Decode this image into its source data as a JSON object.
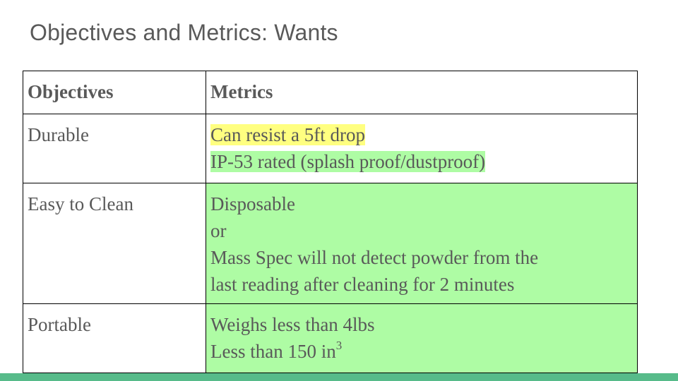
{
  "slide": {
    "title": "Objectives and Metrics: Wants"
  },
  "table": {
    "headers": {
      "objectives": "Objectives",
      "metrics": "Metrics"
    },
    "rows": [
      {
        "objective": "Durable",
        "metrics": [
          "Can resist a 5ft drop",
          "IP-53 rated (splash proof/dustproof)"
        ]
      },
      {
        "objective": "Easy to Clean",
        "metrics": [
          "Disposable",
          "or",
          "Mass Spec will not detect powder from the",
          "last reading after cleaning for 2 minutes"
        ]
      },
      {
        "objective": "Portable",
        "metrics": [
          "Weighs less than 4lbs",
          "Less than 150 in",
          "3"
        ]
      }
    ]
  },
  "colors": {
    "title_text": "#595959",
    "yellow_highlight": "#ffff80",
    "green_highlight": "#aefca4",
    "bottom_bar": "#57bb8a"
  }
}
